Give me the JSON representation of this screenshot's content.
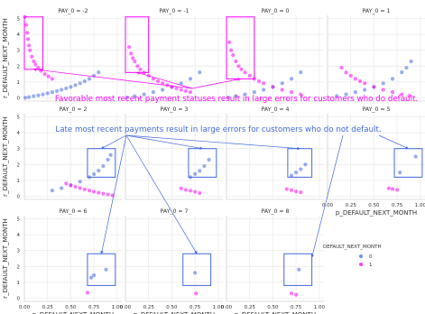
{
  "figure": {
    "callout_magenta": "Favorable most recent payment statuses result in large errors for customers who do default.",
    "callout_blue": "Late most recent payments result in large errors for customers who do not default."
  },
  "chart_data": {
    "type": "scatter",
    "facet_variable": "PAY_0",
    "xlabel": "p_DEFAULT_NEXT_MONTH",
    "ylabel": "r_DEFAULT_NEXT_MONTH",
    "xlim": [
      0,
      1.05
    ],
    "ylim": [
      -0.2,
      5.2
    ],
    "x_ticks": [
      "0.00",
      "0.25",
      "0.50",
      "0.75",
      "1.00"
    ],
    "y_ticks": [
      "0",
      "1",
      "2",
      "3",
      "4",
      "5"
    ],
    "grid": true,
    "legend": {
      "title": "DEFAULT_NEXT_MONTH",
      "placement": "right",
      "entries": [
        {
          "label": "0",
          "color": "#4169e1"
        },
        {
          "label": "1",
          "color": "#ff00ff"
        }
      ]
    },
    "colors": {
      "class_0": "#4169e1",
      "class_1": "#ff00ff",
      "callout_magenta": "#ff00ff",
      "callout_blue": "#4169e1"
    },
    "panels": [
      {
        "title": "PAY_0 = -2",
        "highlight": {
          "x": [
            0.0,
            0.2
          ],
          "y": [
            1.8,
            5.1
          ],
          "color": "#ff00ff"
        },
        "series": [
          {
            "label": "0",
            "points": [
              [
                0.01,
                0.01
              ],
              [
                0.05,
                0.05
              ],
              [
                0.1,
                0.11
              ],
              [
                0.15,
                0.16
              ],
              [
                0.2,
                0.22
              ],
              [
                0.25,
                0.29
              ],
              [
                0.3,
                0.36
              ],
              [
                0.35,
                0.43
              ],
              [
                0.4,
                0.51
              ],
              [
                0.45,
                0.6
              ],
              [
                0.5,
                0.69
              ],
              [
                0.55,
                0.8
              ],
              [
                0.6,
                0.92
              ],
              [
                0.65,
                1.05
              ],
              [
                0.7,
                1.2
              ],
              [
                0.75,
                1.39
              ],
              [
                0.8,
                1.61
              ]
            ]
          },
          {
            "label": "1",
            "points": [
              [
                0.006,
                5.1
              ],
              [
                0.02,
                4.6
              ],
              [
                0.03,
                4.1
              ],
              [
                0.04,
                3.7
              ],
              [
                0.05,
                3.3
              ],
              [
                0.06,
                3.0
              ],
              [
                0.08,
                2.6
              ],
              [
                0.1,
                2.3
              ],
              [
                0.12,
                2.1
              ],
              [
                0.15,
                1.9
              ],
              [
                0.18,
                1.7
              ],
              [
                0.22,
                1.5
              ],
              [
                0.26,
                1.35
              ],
              [
                0.3,
                1.2
              ]
            ]
          }
        ]
      },
      {
        "title": "PAY_0 = -1",
        "highlight": {
          "x": [
            0.0,
            0.25
          ],
          "y": [
            1.6,
            5.1
          ],
          "color": "#ff00ff"
        },
        "series": [
          {
            "label": "0",
            "points": [
              [
                0.02,
                0.02
              ],
              [
                0.1,
                0.11
              ],
              [
                0.2,
                0.22
              ],
              [
                0.3,
                0.36
              ],
              [
                0.4,
                0.51
              ],
              [
                0.5,
                0.69
              ],
              [
                0.6,
                0.92
              ],
              [
                0.7,
                1.2
              ],
              [
                0.8,
                1.61
              ]
            ]
          },
          {
            "label": "1",
            "points": [
              [
                0.04,
                3.2
              ],
              [
                0.06,
                2.8
              ],
              [
                0.08,
                2.5
              ],
              [
                0.1,
                2.3
              ],
              [
                0.13,
                2.0
              ],
              [
                0.16,
                1.8
              ],
              [
                0.2,
                1.6
              ],
              [
                0.25,
                1.4
              ],
              [
                0.3,
                1.2
              ],
              [
                0.35,
                1.05
              ],
              [
                0.4,
                0.92
              ],
              [
                0.45,
                0.8
              ],
              [
                0.5,
                0.69
              ],
              [
                0.55,
                0.6
              ],
              [
                0.6,
                0.51
              ],
              [
                0.65,
                0.43
              ],
              [
                0.7,
                0.36
              ]
            ]
          }
        ]
      },
      {
        "title": "PAY_0 = 0",
        "highlight": {
          "x": [
            0.0,
            0.3
          ],
          "y": [
            1.2,
            5.1
          ],
          "color": "#ff00ff"
        },
        "series": [
          {
            "label": "0",
            "points": [
              [
                0.02,
                0.02
              ],
              [
                0.1,
                0.11
              ],
              [
                0.2,
                0.22
              ],
              [
                0.3,
                0.36
              ],
              [
                0.4,
                0.51
              ],
              [
                0.5,
                0.69
              ],
              [
                0.6,
                0.92
              ],
              [
                0.7,
                1.2
              ],
              [
                0.8,
                1.61
              ]
            ]
          },
          {
            "label": "1",
            "points": [
              [
                0.03,
                3.5
              ],
              [
                0.05,
                3.0
              ],
              [
                0.07,
                2.7
              ],
              [
                0.1,
                2.3
              ],
              [
                0.13,
                2.0
              ],
              [
                0.16,
                1.8
              ],
              [
                0.2,
                1.6
              ],
              [
                0.25,
                1.4
              ],
              [
                0.3,
                1.2
              ],
              [
                0.35,
                1.05
              ],
              [
                0.4,
                0.92
              ],
              [
                0.5,
                0.69
              ],
              [
                0.6,
                0.51
              ],
              [
                0.7,
                0.36
              ],
              [
                0.8,
                0.22
              ]
            ]
          }
        ]
      },
      {
        "title": "PAY_0 = 1",
        "highlight": null,
        "series": [
          {
            "label": "0",
            "points": [
              [
                0.1,
                0.11
              ],
              [
                0.2,
                0.22
              ],
              [
                0.3,
                0.36
              ],
              [
                0.4,
                0.51
              ],
              [
                0.5,
                0.69
              ],
              [
                0.6,
                0.92
              ],
              [
                0.7,
                1.2
              ],
              [
                0.8,
                1.61
              ],
              [
                0.85,
                1.9
              ],
              [
                0.9,
                2.3
              ]
            ]
          },
          {
            "label": "1",
            "points": [
              [
                0.15,
                1.9
              ],
              [
                0.2,
                1.6
              ],
              [
                0.25,
                1.4
              ],
              [
                0.3,
                1.2
              ],
              [
                0.35,
                1.05
              ],
              [
                0.4,
                0.92
              ],
              [
                0.5,
                0.69
              ],
              [
                0.6,
                0.51
              ],
              [
                0.7,
                0.36
              ],
              [
                0.8,
                0.22
              ],
              [
                0.88,
                0.13
              ]
            ]
          }
        ]
      },
      {
        "title": "PAY_0 = 2",
        "highlight": {
          "x": [
            0.68,
            0.98
          ],
          "y": [
            1.2,
            3.0
          ],
          "color": "#4169e1"
        },
        "series": [
          {
            "label": "0",
            "points": [
              [
                0.3,
                0.36
              ],
              [
                0.4,
                0.51
              ],
              [
                0.5,
                0.69
              ],
              [
                0.6,
                0.92
              ],
              [
                0.7,
                1.2
              ],
              [
                0.75,
                1.39
              ],
              [
                0.8,
                1.61
              ],
              [
                0.85,
                1.9
              ],
              [
                0.9,
                2.3
              ],
              [
                0.93,
                2.6
              ]
            ]
          },
          {
            "label": "1",
            "points": [
              [
                0.45,
                0.8
              ],
              [
                0.5,
                0.69
              ],
              [
                0.55,
                0.6
              ],
              [
                0.6,
                0.51
              ],
              [
                0.65,
                0.43
              ],
              [
                0.7,
                0.36
              ],
              [
                0.75,
                0.29
              ],
              [
                0.8,
                0.22
              ],
              [
                0.85,
                0.16
              ],
              [
                0.9,
                0.11
              ],
              [
                0.95,
                0.05
              ]
            ]
          }
        ]
      },
      {
        "title": "PAY_0 = 3",
        "highlight": {
          "x": [
            0.68,
            0.98
          ],
          "y": [
            1.2,
            3.0
          ],
          "color": "#4169e1"
        },
        "series": [
          {
            "label": "0",
            "points": [
              [
                0.7,
                1.2
              ],
              [
                0.75,
                1.4
              ],
              [
                0.8,
                1.6
              ],
              [
                0.85,
                1.9
              ],
              [
                0.9,
                2.3
              ]
            ]
          },
          {
            "label": "1",
            "points": [
              [
                0.6,
                0.5
              ],
              [
                0.65,
                0.4
              ],
              [
                0.7,
                0.35
              ],
              [
                0.75,
                0.28
              ],
              [
                0.8,
                0.2
              ]
            ]
          }
        ]
      },
      {
        "title": "PAY_0 = 4",
        "highlight": {
          "x": [
            0.66,
            0.92
          ],
          "y": [
            1.2,
            3.0
          ],
          "color": "#4169e1"
        },
        "series": [
          {
            "label": "0",
            "points": [
              [
                0.7,
                1.3
              ],
              [
                0.75,
                1.5
              ],
              [
                0.8,
                1.7
              ],
              [
                0.85,
                2.0
              ]
            ]
          },
          {
            "label": "1",
            "points": [
              [
                0.65,
                0.45
              ],
              [
                0.7,
                0.38
              ],
              [
                0.75,
                0.3
              ],
              [
                0.8,
                0.25
              ]
            ]
          }
        ]
      },
      {
        "title": "PAY_0 = 5",
        "highlight": {
          "x": [
            0.72,
            1.02
          ],
          "y": [
            1.2,
            3.0
          ],
          "color": "#4169e1"
        },
        "series": [
          {
            "label": "0",
            "points": [
              [
                0.78,
                1.5
              ],
              [
                0.95,
                2.5
              ]
            ]
          },
          {
            "label": "1",
            "points": [
              [
                0.66,
                0.5
              ],
              [
                0.7,
                0.45
              ],
              [
                0.75,
                0.4
              ]
            ]
          }
        ]
      },
      {
        "title": "PAY_0 = 6",
        "highlight": {
          "x": [
            0.68,
            0.98
          ],
          "y": [
            0.8,
            2.8
          ],
          "color": "#4169e1"
        },
        "series": [
          {
            "label": "0",
            "points": [
              [
                0.72,
                1.3
              ],
              [
                0.75,
                1.45
              ],
              [
                0.88,
                1.8
              ]
            ]
          },
          {
            "label": "1",
            "points": [
              [
                0.68,
                0.35
              ]
            ]
          }
        ]
      },
      {
        "title": "PAY_0 = 7",
        "highlight": {
          "x": [
            0.62,
            0.92
          ],
          "y": [
            0.8,
            2.8
          ],
          "color": "#4169e1"
        },
        "series": [
          {
            "label": "0",
            "points": [
              [
                0.75,
                1.6
              ]
            ]
          },
          {
            "label": "1",
            "points": [
              [
                0.76,
                0.3
              ]
            ]
          }
        ]
      },
      {
        "title": "PAY_0 = 8",
        "highlight": {
          "x": [
            0.62,
            0.92
          ],
          "y": [
            0.8,
            2.8
          ],
          "color": "#4169e1"
        },
        "series": [
          {
            "label": "0",
            "points": [
              [
                0.78,
                1.8
              ]
            ]
          },
          {
            "label": "1",
            "points": [
              [
                0.7,
                0.3
              ],
              [
                0.75,
                0.22
              ]
            ]
          }
        ]
      }
    ]
  }
}
